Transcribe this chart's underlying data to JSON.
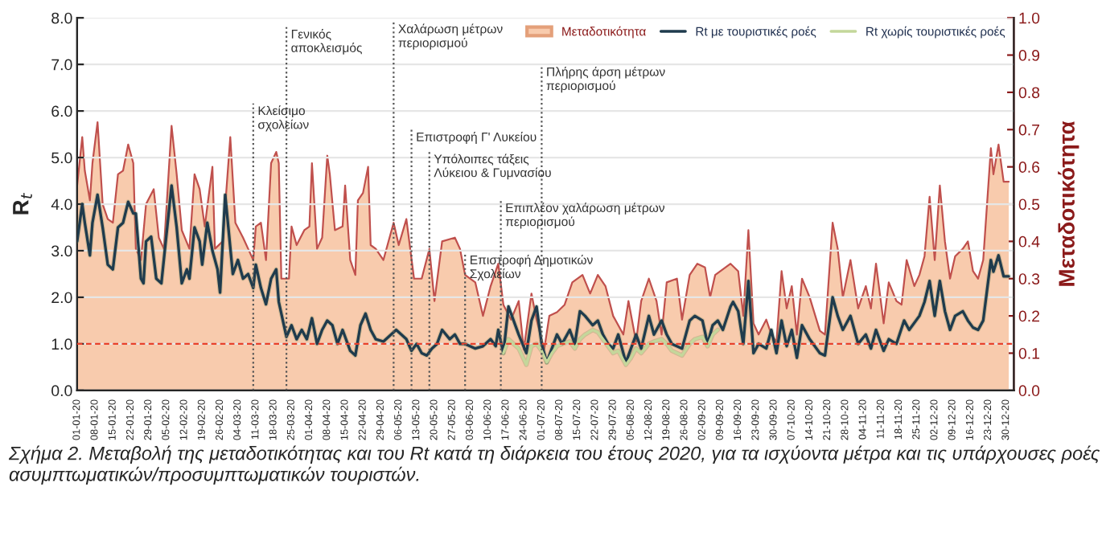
{
  "chart_data": {
    "type": "line",
    "ylabel": "R$_{t}$",
    "y2label": "Μεταδοτικότητα",
    "xlim": [
      "2020-01-01",
      "2021-01-02"
    ],
    "xticks": [
      {
        "value": "2020-01-01",
        "label": "01-01-20"
      },
      {
        "value": "2020-01-08",
        "label": "08-01-20"
      },
      {
        "value": "2020-01-15",
        "label": "15-01-20"
      },
      {
        "value": "2020-01-22",
        "label": "22-01-20"
      },
      {
        "value": "2020-01-29",
        "label": "29-01-20"
      },
      {
        "value": "2020-02-05",
        "label": "05-02-20"
      },
      {
        "value": "2020-02-12",
        "label": "12-02-20"
      },
      {
        "value": "2020-02-19",
        "label": "19-02-20"
      },
      {
        "value": "2020-02-26",
        "label": "26-02-20"
      },
      {
        "value": "2020-03-04",
        "label": "04-03-20"
      },
      {
        "value": "2020-03-11",
        "label": "11-03-20"
      },
      {
        "value": "2020-03-18",
        "label": "18-03-20"
      },
      {
        "value": "2020-03-25",
        "label": "25-03-20"
      },
      {
        "value": "2020-04-01",
        "label": "01-04-20"
      },
      {
        "value": "2020-04-08",
        "label": "08-04-20"
      },
      {
        "value": "2020-04-15",
        "label": "15-04-20"
      },
      {
        "value": "2020-04-22",
        "label": "22-04-20"
      },
      {
        "value": "2020-04-29",
        "label": "29-04-20"
      },
      {
        "value": "2020-05-06",
        "label": "06-05-20"
      },
      {
        "value": "2020-05-13",
        "label": "13-05-20"
      },
      {
        "value": "2020-05-20",
        "label": "20-05-20"
      },
      {
        "value": "2020-05-27",
        "label": "27-05-20"
      },
      {
        "value": "2020-06-03",
        "label": "03-06-20"
      },
      {
        "value": "2020-06-10",
        "label": "10-06-20"
      },
      {
        "value": "2020-06-17",
        "label": "17-06-20"
      },
      {
        "value": "2020-06-24",
        "label": "24-06-20"
      },
      {
        "value": "2020-07-01",
        "label": "01-07-20"
      },
      {
        "value": "2020-07-08",
        "label": "08-07-20"
      },
      {
        "value": "2020-07-15",
        "label": "15-07-20"
      },
      {
        "value": "2020-07-22",
        "label": "22-07-20"
      },
      {
        "value": "2020-07-29",
        "label": "29-07-20"
      },
      {
        "value": "2020-08-05",
        "label": "05-08-20"
      },
      {
        "value": "2020-08-12",
        "label": "12-08-20"
      },
      {
        "value": "2020-08-19",
        "label": "19-08-20"
      },
      {
        "value": "2020-08-26",
        "label": "26-08-20"
      },
      {
        "value": "2020-09-02",
        "label": "02-09-20"
      },
      {
        "value": "2020-09-09",
        "label": "09-09-20"
      },
      {
        "value": "2020-09-16",
        "label": "16-09-20"
      },
      {
        "value": "2020-09-23",
        "label": "23-09-20"
      },
      {
        "value": "2020-09-30",
        "label": "30-09-20"
      },
      {
        "value": "2020-10-07",
        "label": "07-10-20"
      },
      {
        "value": "2020-10-14",
        "label": "14-10-20"
      },
      {
        "value": "2020-10-21",
        "label": "21-10-20"
      },
      {
        "value": "2020-10-28",
        "label": "28-10-20"
      },
      {
        "value": "2020-11-04",
        "label": "04-11-20"
      },
      {
        "value": "2020-11-11",
        "label": "11-11-20"
      },
      {
        "value": "2020-11-18",
        "label": "18-11-20"
      },
      {
        "value": "2020-11-25",
        "label": "25-11-20"
      },
      {
        "value": "2020-12-02",
        "label": "02-12-20"
      },
      {
        "value": "2020-12-09",
        "label": "09-12-20"
      },
      {
        "value": "2020-12-16",
        "label": "16-12-20"
      },
      {
        "value": "2020-12-23",
        "label": "23-12-20"
      },
      {
        "value": "2020-12-30",
        "label": "30-12-20"
      }
    ],
    "ylim": [
      0,
      8
    ],
    "yticks": [
      {
        "value": 0,
        "label": "0.0"
      },
      {
        "value": 1,
        "label": "1.0"
      },
      {
        "value": 2,
        "label": "2.0"
      },
      {
        "value": 3,
        "label": "3.0"
      },
      {
        "value": 4,
        "label": "4.0"
      },
      {
        "value": 5,
        "label": "5.0"
      },
      {
        "value": 6,
        "label": "6.0"
      },
      {
        "value": 7,
        "label": "7.0"
      },
      {
        "value": 8,
        "label": "8.0"
      }
    ],
    "y2lim": [
      0,
      1
    ],
    "y2ticks": [
      {
        "value": 0,
        "label": "0.0"
      },
      {
        "value": 0.1,
        "label": "0.1"
      },
      {
        "value": 0.2,
        "label": "0.2"
      },
      {
        "value": 0.3,
        "label": "0.3"
      },
      {
        "value": 0.4,
        "label": "0.4"
      },
      {
        "value": 0.5,
        "label": "0.5"
      },
      {
        "value": 0.6,
        "label": "0.6"
      },
      {
        "value": 0.7,
        "label": "0.7"
      },
      {
        "value": 0.8,
        "label": "0.8"
      },
      {
        "value": 0.9,
        "label": "0.9"
      },
      {
        "value": 1,
        "label": "1.0"
      }
    ],
    "grid": "y",
    "legend": "top",
    "series": [
      {
        "name": "Μεταδοτικότητα",
        "type": "area",
        "axis": "y2",
        "color": "#f8cbad",
        "x": [
          "2020-01-01",
          "2020-01-03",
          "2020-01-04",
          "2020-01-06",
          "2020-01-07",
          "2020-01-09",
          "2020-01-11",
          "2020-01-13",
          "2020-01-15",
          "2020-01-17",
          "2020-01-19",
          "2020-01-21",
          "2020-01-23",
          "2020-01-24",
          "2020-01-26",
          "2020-01-28",
          "2020-01-31",
          "2020-02-02",
          "2020-02-04",
          "2020-02-07",
          "2020-02-09",
          "2020-02-11",
          "2020-02-14",
          "2020-02-16",
          "2020-02-18",
          "2020-02-20",
          "2020-02-23",
          "2020-02-24",
          "2020-02-27",
          "2020-03-01",
          "2020-03-03",
          "2020-03-06",
          "2020-03-08",
          "2020-03-10",
          "2020-03-11",
          "2020-03-13",
          "2020-03-15",
          "2020-03-17",
          "2020-03-19",
          "2020-03-20",
          "2020-03-21",
          "2020-03-24",
          "2020-03-25",
          "2020-03-27",
          "2020-03-30",
          "2020-04-01",
          "2020-04-02",
          "2020-04-04",
          "2020-04-06",
          "2020-04-08",
          "2020-04-09",
          "2020-04-11",
          "2020-04-14",
          "2020-04-15",
          "2020-04-17",
          "2020-04-19",
          "2020-04-20",
          "2020-04-22",
          "2020-04-24",
          "2020-04-25",
          "2020-04-27",
          "2020-04-30",
          "2020-05-04",
          "2020-05-06",
          "2020-05-09",
          "2020-05-12",
          "2020-05-15",
          "2020-05-18",
          "2020-05-20",
          "2020-05-23",
          "2020-05-28",
          "2020-05-30",
          "2020-06-01",
          "2020-06-05",
          "2020-06-08",
          "2020-06-11",
          "2020-06-14",
          "2020-06-16",
          "2020-06-19",
          "2020-06-22",
          "2020-06-24",
          "2020-06-27",
          "2020-06-29",
          "2020-07-02",
          "2020-07-04",
          "2020-07-07",
          "2020-07-10",
          "2020-07-13",
          "2020-07-17",
          "2020-07-20",
          "2020-07-23",
          "2020-07-26",
          "2020-07-29",
          "2020-08-02",
          "2020-08-04",
          "2020-08-07",
          "2020-08-09",
          "2020-08-12",
          "2020-08-15",
          "2020-08-17",
          "2020-08-19",
          "2020-08-23",
          "2020-08-25",
          "2020-08-28",
          "2020-08-31",
          "2020-09-03",
          "2020-09-05",
          "2020-09-07",
          "2020-09-13",
          "2020-09-16",
          "2020-09-18",
          "2020-09-20",
          "2020-09-22",
          "2020-09-24",
          "2020-09-27",
          "2020-09-29",
          "2020-10-01",
          "2020-10-03",
          "2020-10-05",
          "2020-10-07",
          "2020-10-09",
          "2020-10-11",
          "2020-10-14",
          "2020-10-18",
          "2020-10-20",
          "2020-10-23",
          "2020-10-25",
          "2020-10-27",
          "2020-10-30",
          "2020-11-02",
          "2020-11-05",
          "2020-11-07",
          "2020-11-09",
          "2020-11-12",
          "2020-11-14",
          "2020-11-17",
          "2020-11-19",
          "2020-11-21",
          "2020-11-24",
          "2020-11-26",
          "2020-11-28",
          "2020-11-30",
          "2020-12-02",
          "2020-12-04",
          "2020-12-06",
          "2020-12-08",
          "2020-12-10",
          "2020-12-13",
          "2020-12-15",
          "2020-12-17",
          "2020-12-19",
          "2020-12-21",
          "2020-12-24",
          "2020-12-25",
          "2020-12-27",
          "2020-12-29",
          "2020-12-31"
        ],
        "values": [
          0.55,
          0.68,
          0.59,
          0.51,
          0.61,
          0.72,
          0.5,
          0.46,
          0.45,
          0.58,
          0.59,
          0.66,
          0.61,
          0.38,
          0.35,
          0.5,
          0.54,
          0.41,
          0.38,
          0.71,
          0.58,
          0.43,
          0.38,
          0.58,
          0.54,
          0.44,
          0.6,
          0.38,
          0.4,
          0.68,
          0.45,
          0.41,
          0.38,
          0.35,
          0.44,
          0.45,
          0.35,
          0.61,
          0.64,
          0.61,
          0.3,
          0.3,
          0.44,
          0.39,
          0.43,
          0.44,
          0.61,
          0.38,
          0.41,
          0.63,
          0.58,
          0.43,
          0.44,
          0.55,
          0.35,
          0.31,
          0.51,
          0.53,
          0.6,
          0.39,
          0.38,
          0.35,
          0.45,
          0.39,
          0.46,
          0.3,
          0.3,
          0.38,
          0.24,
          0.4,
          0.41,
          0.38,
          0.31,
          0.29,
          0.2,
          0.28,
          0.34,
          0.23,
          0.19,
          0.24,
          0.11,
          0.26,
          0.19,
          0.11,
          0.2,
          0.21,
          0.23,
          0.29,
          0.31,
          0.26,
          0.31,
          0.28,
          0.2,
          0.15,
          0.24,
          0.13,
          0.24,
          0.3,
          0.24,
          0.15,
          0.29,
          0.3,
          0.19,
          0.31,
          0.34,
          0.33,
          0.25,
          0.31,
          0.34,
          0.32,
          0.2,
          0.43,
          0.18,
          0.15,
          0.19,
          0.15,
          0.13,
          0.32,
          0.22,
          0.28,
          0.15,
          0.3,
          0.25,
          0.16,
          0.15,
          0.45,
          0.38,
          0.25,
          0.35,
          0.22,
          0.28,
          0.22,
          0.34,
          0.18,
          0.29,
          0.24,
          0.23,
          0.35,
          0.28,
          0.31,
          0.36,
          0.52,
          0.35,
          0.55,
          0.4,
          0.3,
          0.36,
          0.38,
          0.4,
          0.32,
          0.3,
          0.35,
          0.65,
          0.58,
          0.66,
          0.56,
          0.56
        ]
      },
      {
        "name": "Rt με τουριστικές ροές",
        "type": "line",
        "color": "#1f3b4d",
        "x": [
          "2020-01-01",
          "2020-01-03",
          "2020-01-04",
          "2020-01-06",
          "2020-01-07",
          "2020-01-09",
          "2020-01-11",
          "2020-01-13",
          "2020-01-15",
          "2020-01-17",
          "2020-01-19",
          "2020-01-21",
          "2020-01-23",
          "2020-01-24",
          "2020-01-26",
          "2020-01-27",
          "2020-01-28",
          "2020-01-30",
          "2020-02-01",
          "2020-02-03",
          "2020-02-07",
          "2020-02-09",
          "2020-02-11",
          "2020-02-13",
          "2020-02-14",
          "2020-02-16",
          "2020-02-18",
          "2020-02-19",
          "2020-02-21",
          "2020-02-23",
          "2020-02-25",
          "2020-02-26",
          "2020-02-28",
          "2020-03-02",
          "2020-03-04",
          "2020-03-06",
          "2020-03-08",
          "2020-03-10",
          "2020-03-11",
          "2020-03-13",
          "2020-03-15",
          "2020-03-17",
          "2020-03-19",
          "2020-03-20",
          "2020-03-22",
          "2020-03-23",
          "2020-03-25",
          "2020-03-27",
          "2020-03-29",
          "2020-03-31",
          "2020-04-02",
          "2020-04-04",
          "2020-04-06",
          "2020-04-08",
          "2020-04-10",
          "2020-04-12",
          "2020-04-14",
          "2020-04-17",
          "2020-04-19",
          "2020-04-21",
          "2020-04-23",
          "2020-04-25",
          "2020-04-27",
          "2020-04-30",
          "2020-05-05",
          "2020-05-07",
          "2020-05-09",
          "2020-05-11",
          "2020-05-13",
          "2020-05-15",
          "2020-05-17",
          "2020-05-19",
          "2020-05-21",
          "2020-05-23",
          "2020-05-26",
          "2020-05-28",
          "2020-05-30",
          "2020-06-01",
          "2020-06-05",
          "2020-06-08",
          "2020-06-11",
          "2020-06-13",
          "2020-06-14",
          "2020-06-16",
          "2020-06-18",
          "2020-06-20",
          "2020-06-22",
          "2020-06-25",
          "2020-06-27",
          "2020-06-29",
          "2020-07-01",
          "2020-07-03",
          "2020-07-05",
          "2020-07-07",
          "2020-07-09",
          "2020-07-12",
          "2020-07-14",
          "2020-07-16",
          "2020-07-18",
          "2020-07-21",
          "2020-07-23",
          "2020-07-25",
          "2020-07-27",
          "2020-07-29",
          "2020-07-31",
          "2020-08-03",
          "2020-08-05",
          "2020-08-07",
          "2020-08-09",
          "2020-08-12",
          "2020-08-14",
          "2020-08-17",
          "2020-08-19",
          "2020-08-21",
          "2020-08-25",
          "2020-08-28",
          "2020-08-30",
          "2020-09-02",
          "2020-09-04",
          "2020-09-06",
          "2020-09-08",
          "2020-09-10",
          "2020-09-13",
          "2020-09-14",
          "2020-09-16",
          "2020-09-18",
          "2020-09-20",
          "2020-09-22",
          "2020-09-24",
          "2020-09-27",
          "2020-09-29",
          "2020-10-01",
          "2020-10-03",
          "2020-10-05",
          "2020-10-07",
          "2020-10-09",
          "2020-10-11",
          "2020-10-14",
          "2020-10-18",
          "2020-10-20",
          "2020-10-23",
          "2020-10-25",
          "2020-10-27",
          "2020-10-30",
          "2020-11-02",
          "2020-11-05",
          "2020-11-07",
          "2020-11-09",
          "2020-11-12",
          "2020-11-14",
          "2020-11-17",
          "2020-11-20",
          "2020-11-22",
          "2020-11-26",
          "2020-11-28",
          "2020-11-30",
          "2020-12-02",
          "2020-12-04",
          "2020-12-06",
          "2020-12-08",
          "2020-12-10",
          "2020-12-13",
          "2020-12-15",
          "2020-12-17",
          "2020-12-19",
          "2020-12-21",
          "2020-12-24",
          "2020-12-25",
          "2020-12-27",
          "2020-12-29",
          "2020-12-31"
        ],
        "values": [
          3.2,
          4.0,
          3.6,
          2.9,
          3.6,
          4.2,
          3.5,
          2.7,
          2.6,
          3.5,
          3.6,
          4.05,
          3.8,
          3.8,
          2.4,
          2.3,
          3.2,
          3.3,
          2.4,
          2.3,
          4.4,
          3.5,
          2.3,
          2.6,
          2.4,
          3.5,
          3.2,
          2.7,
          3.6,
          3.0,
          2.6,
          2.1,
          4.2,
          2.5,
          2.8,
          2.4,
          2.5,
          2.2,
          2.7,
          2.2,
          1.85,
          2.4,
          2.6,
          1.9,
          1.4,
          1.15,
          1.4,
          1.1,
          1.3,
          1.1,
          1.55,
          1.0,
          1.3,
          1.5,
          1.4,
          1.0,
          1.3,
          0.85,
          0.75,
          1.4,
          1.65,
          1.3,
          1.1,
          1.05,
          1.3,
          1.2,
          1.1,
          0.85,
          1.0,
          0.8,
          0.75,
          0.9,
          1.0,
          1.3,
          1.1,
          1.2,
          1.0,
          1.0,
          0.9,
          0.95,
          1.1,
          0.95,
          1.3,
          0.8,
          1.8,
          1.5,
          1.2,
          0.8,
          1.5,
          1.8,
          1.0,
          0.6,
          0.9,
          1.2,
          1.0,
          1.3,
          1.0,
          1.7,
          1.6,
          1.4,
          1.5,
          1.2,
          1.0,
          0.9,
          1.2,
          0.6,
          0.9,
          1.2,
          0.9,
          1.6,
          1.2,
          1.5,
          1.2,
          1.0,
          0.9,
          1.5,
          1.6,
          1.5,
          1.0,
          1.4,
          1.5,
          1.3,
          1.8,
          1.9,
          1.7,
          1.0,
          2.35,
          0.8,
          1.0,
          0.9,
          1.3,
          0.8,
          1.5,
          0.95,
          1.3,
          0.7,
          1.4,
          1.1,
          0.8,
          0.75,
          2.0,
          1.6,
          1.3,
          1.6,
          1.0,
          1.2,
          0.9,
          1.3,
          0.85,
          1.1,
          1.0,
          1.5,
          1.3,
          1.6,
          1.9,
          2.35,
          1.6,
          2.35,
          1.7,
          1.3,
          1.6,
          1.7,
          1.5,
          1.35,
          1.3,
          1.5,
          2.8,
          2.55,
          2.9,
          2.45,
          2.45
        ]
      },
      {
        "name": "Rt χωρίς τουριστικές ροές",
        "type": "line",
        "color": "#c4d79b",
        "x": [
          "2020-06-16",
          "2020-06-18",
          "2020-06-20",
          "2020-06-22",
          "2020-06-25",
          "2020-06-27",
          "2020-06-29",
          "2020-07-01",
          "2020-07-03",
          "2020-07-05",
          "2020-07-07",
          "2020-07-09",
          "2020-07-12",
          "2020-07-14",
          "2020-07-16",
          "2020-07-18",
          "2020-07-21",
          "2020-07-23",
          "2020-07-25",
          "2020-07-27",
          "2020-07-29",
          "2020-07-31",
          "2020-08-03",
          "2020-08-05",
          "2020-08-07",
          "2020-08-09",
          "2020-08-12",
          "2020-08-14",
          "2020-08-17",
          "2020-08-19",
          "2020-08-21",
          "2020-08-25",
          "2020-08-28",
          "2020-08-30",
          "2020-09-02",
          "2020-09-04",
          "2020-09-06",
          "2020-09-08"
        ],
        "values": [
          0.8,
          1.1,
          1.0,
          0.9,
          0.55,
          0.95,
          1.0,
          0.85,
          0.6,
          0.8,
          0.95,
          1.0,
          1.05,
          0.9,
          1.1,
          1.2,
          1.3,
          1.25,
          1.1,
          0.95,
          0.8,
          0.85,
          0.55,
          0.7,
          0.9,
          0.8,
          1.0,
          1.05,
          1.1,
          1.0,
          0.85,
          0.75,
          1.0,
          1.1,
          1.15,
          0.95,
          1.2,
          1.3
        ]
      }
    ],
    "ref_lines": [
      {
        "axis": "y",
        "value": 1,
        "color": "#e8412c",
        "line_style": "dashed"
      },
      {
        "axis": "x",
        "value": "2020-03-10",
        "label": "Κλείσιμο\nσχολείων",
        "line_style": "dotted"
      },
      {
        "axis": "x",
        "value": "2020-03-23",
        "label": "Γενικός\nαποκλεισμός",
        "line_style": "dotted"
      },
      {
        "axis": "x",
        "value": "2020-05-04",
        "label": "Χαλάρωση μέτρων\nπεριορισμού",
        "line_style": "dotted"
      },
      {
        "axis": "x",
        "value": "2020-05-11",
        "label": "Επιστροφή Γ' Λυκείου",
        "line_style": "dotted"
      },
      {
        "axis": "x",
        "value": "2020-05-18",
        "label": "Υπόλοιπες τάξεις\nΛύκειου & Γυμνασίου",
        "line_style": "dotted"
      },
      {
        "axis": "x",
        "value": "2020-06-01",
        "label": "Επιστροφή Δημοτικών\nΣχολείων",
        "line_style": "dotted"
      },
      {
        "axis": "x",
        "value": "2020-06-15",
        "label": "Επιπλέον χαλάρωση μέτρων\nπεριορισμού",
        "line_style": "dotted"
      },
      {
        "axis": "x",
        "value": "2020-07-01",
        "label": "Πλήρης άρση μέτρων\nπεριορισμού",
        "line_style": "dotted"
      }
    ],
    "annotations": [
      "Σχήμα 2. Μεταβολή της μεταδοτικότητας και του Rt κατά τη διάρκεια του έτους 2020, για τα ισχύοντα μέτρα και τις υπάρχουσες ροές ασυμπτωματικών/προσυμπτωματικών τουριστών."
    ]
  }
}
